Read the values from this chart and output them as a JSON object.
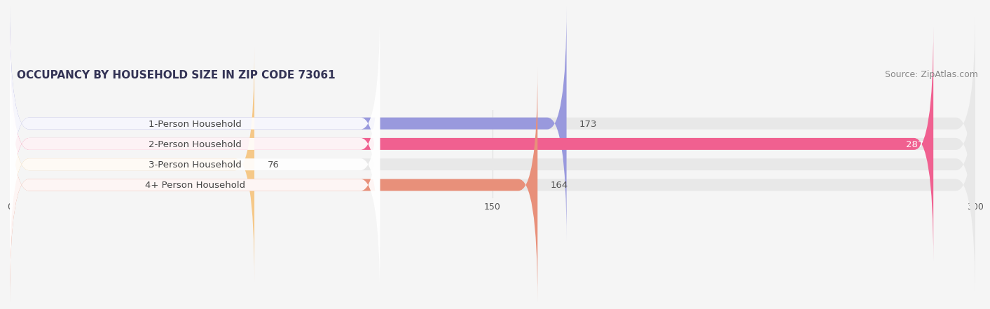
{
  "title": "OCCUPANCY BY HOUSEHOLD SIZE IN ZIP CODE 73061",
  "source": "Source: ZipAtlas.com",
  "categories": [
    "1-Person Household",
    "2-Person Household",
    "3-Person Household",
    "4+ Person Household"
  ],
  "values": [
    173,
    287,
    76,
    164
  ],
  "bar_colors": [
    "#9999dd",
    "#f06090",
    "#f5c888",
    "#e8907a"
  ],
  "xlim": [
    0,
    300
  ],
  "xticks": [
    0,
    150,
    300
  ],
  "bar_height": 0.58,
  "label_fontsize": 9.5,
  "value_fontsize": 9.5,
  "title_fontsize": 11,
  "source_fontsize": 9,
  "background_color": "#f5f5f5",
  "bar_bg_color": "#e8e8e8",
  "label_box_color": "#ffffff",
  "gap_color": "#f5f5f5"
}
